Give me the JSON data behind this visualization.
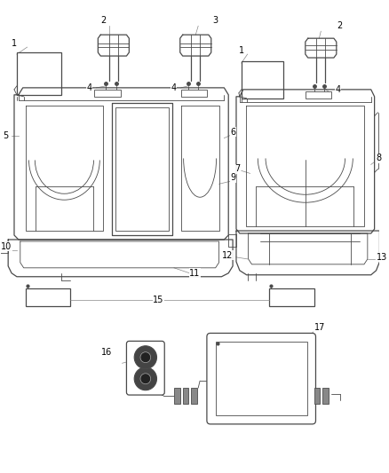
{
  "background_color": "#ffffff",
  "line_color": "#4a4a4a",
  "light_line": "#888888",
  "label_color": "#000000",
  "figsize": [
    4.38,
    5.33
  ],
  "dpi": 100,
  "seat_fill": "#f8f8f8",
  "dark_fill": "#555555"
}
